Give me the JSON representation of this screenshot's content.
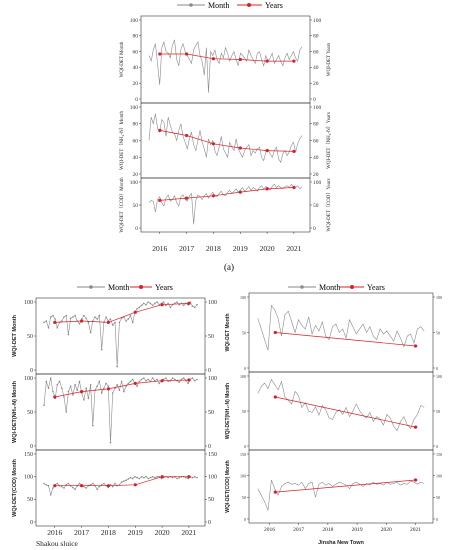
{
  "legend": {
    "month": "Month",
    "years": "Years"
  },
  "colors": {
    "month": "#8a8a8a",
    "years": "#d9202a",
    "axis": "#333333",
    "accent_point": "#3ab0c8"
  },
  "figure_label": "(a)",
  "chart_data": [
    {
      "id": "top",
      "type": "line",
      "xlabels": [
        "2016",
        "2017",
        "2018",
        "2019",
        "2020",
        "2021"
      ],
      "xlim": [
        2015.3,
        2021.6
      ],
      "panels": [
        {
          "ylabel": "WQI-DET Month",
          "ylabel_right": "WQI-DET Years",
          "ylim": [
            0,
            100
          ],
          "ticks": [
            0,
            20,
            40,
            60,
            80,
            100
          ],
          "month": [
            55,
            48,
            62,
            70,
            45,
            18,
            65,
            72,
            60,
            58,
            52,
            68,
            75,
            50,
            42,
            63,
            70,
            60,
            55,
            50,
            45,
            62,
            68,
            72,
            55,
            48,
            30,
            65,
            8,
            60,
            55,
            62,
            50,
            45,
            58,
            52,
            65,
            58,
            48,
            55,
            60,
            50,
            42,
            58,
            55,
            52,
            48,
            62,
            55,
            50,
            45,
            58,
            60,
            50,
            42,
            55,
            48,
            52,
            58,
            45,
            50,
            55,
            48,
            42,
            52,
            58,
            50,
            55,
            60,
            52,
            48,
            62,
            66
          ],
          "years_x": [
            2016,
            2017,
            2018,
            2019,
            2020,
            2021
          ],
          "years_y": [
            57,
            57,
            51,
            50,
            48,
            48
          ]
        },
        {
          "ylabel": "WQI-DET（NH₄-N）Month",
          "ylabel_right": "WQI-DET（NH₄-N）Years",
          "ylim": [
            20,
            100
          ],
          "ticks": [
            20,
            40,
            60,
            80,
            100
          ],
          "month": [
            60,
            88,
            80,
            92,
            75,
            70,
            85,
            82,
            65,
            88,
            78,
            70,
            68,
            60,
            72,
            80,
            65,
            58,
            50,
            62,
            70,
            55,
            48,
            60,
            72,
            58,
            50,
            40,
            62,
            55,
            60,
            48,
            42,
            52,
            65,
            50,
            45,
            40,
            58,
            52,
            48,
            62,
            50,
            45,
            40,
            48,
            52,
            55,
            42,
            48,
            45,
            50,
            52,
            40,
            36,
            46,
            50,
            44,
            40,
            48,
            52,
            38,
            34,
            44,
            48,
            42,
            46,
            54,
            58,
            46,
            56,
            62,
            66
          ],
          "years_x": [
            2016,
            2017,
            2018,
            2019,
            2020,
            2021
          ],
          "years_y": [
            72,
            66,
            56,
            51,
            48,
            47
          ]
        },
        {
          "ylabel": "WQI-DET（COD）Month",
          "ylabel_right": "WQI-DET（COD）Years",
          "ylim": [
            0,
            100
          ],
          "ticks": [
            0,
            50,
            100
          ],
          "month": [
            55,
            60,
            58,
            35,
            62,
            68,
            55,
            48,
            65,
            72,
            58,
            62,
            70,
            55,
            48,
            68,
            72,
            62,
            58,
            70,
            75,
            8,
            60,
            72,
            68,
            62,
            70,
            75,
            65,
            72,
            78,
            70,
            68,
            75,
            80,
            72,
            70,
            78,
            82,
            75,
            80,
            85,
            78,
            82,
            88,
            80,
            85,
            90,
            82,
            88,
            85,
            80,
            88,
            92,
            85,
            90,
            88,
            82,
            90,
            95,
            88,
            92,
            88,
            85,
            90,
            92,
            88,
            95,
            90,
            88,
            92,
            85,
            90
          ],
          "years_x": [
            2016,
            2017,
            2018,
            2019,
            2020,
            2021
          ],
          "years_y": [
            60,
            65,
            70,
            78,
            85,
            88
          ]
        }
      ]
    },
    {
      "id": "left",
      "type": "line",
      "title": "Shakou sluice",
      "xlabels": [
        "2016",
        "2017",
        "2018",
        "2019",
        "2020",
        "2021"
      ],
      "xlim": [
        2015.3,
        2021.6
      ],
      "panels": [
        {
          "ylabel": "WQI-DET Month",
          "ylim": [
            0,
            100
          ],
          "ticks": [
            0,
            50,
            100
          ],
          "month": [
            70,
            72,
            62,
            78,
            80,
            75,
            62,
            70,
            72,
            78,
            80,
            52,
            76,
            78,
            80,
            72,
            68,
            75,
            80,
            76,
            70,
            55,
            72,
            78,
            75,
            80,
            30,
            70,
            78,
            72,
            75,
            66,
            70,
            5,
            70,
            76,
            78,
            72,
            75,
            80,
            70,
            85,
            90,
            92,
            95,
            98,
            96,
            100,
            98,
            95,
            98,
            100,
            96,
            98,
            100,
            95,
            98,
            92,
            96,
            98,
            100,
            96,
            98,
            95,
            98,
            96,
            100,
            94,
            92,
            96
          ],
          "years_x": [
            2016,
            2017,
            2018,
            2019,
            2020,
            2021
          ],
          "years_y": [
            70,
            72,
            70,
            85,
            96,
            98
          ]
        },
        {
          "ylabel": "WQI-DET(NH₄-N) Month",
          "ylim": [
            0,
            100
          ],
          "ticks": [
            0,
            50,
            100
          ],
          "month": [
            60,
            95,
            85,
            100,
            80,
            70,
            90,
            95,
            85,
            72,
            50,
            80,
            88,
            75,
            90,
            82,
            95,
            78,
            68,
            85,
            70,
            90,
            30,
            82,
            88,
            95,
            78,
            85,
            92,
            88,
            5,
            78,
            85,
            90,
            82,
            95,
            80,
            88,
            92,
            95,
            98,
            92,
            88,
            95,
            98,
            100,
            96,
            98,
            95,
            100,
            96,
            98,
            92,
            96,
            98,
            100,
            95,
            96,
            100,
            98,
            96,
            94,
            98,
            100,
            96,
            92,
            98,
            100,
            96,
            98
          ],
          "years_x": [
            2016,
            2017,
            2018,
            2019,
            2020,
            2021
          ],
          "years_y": [
            72,
            80,
            84,
            92,
            96,
            97
          ]
        },
        {
          "ylabel": "WQI-DET(COD) Month",
          "ylim": [
            0,
            150
          ],
          "ticks": [
            0,
            50,
            100,
            150
          ],
          "month": [
            85,
            82,
            80,
            60,
            75,
            82,
            85,
            80,
            78,
            75,
            82,
            85,
            80,
            76,
            72,
            80,
            85,
            82,
            78,
            75,
            80,
            82,
            85,
            80,
            72,
            78,
            82,
            85,
            80,
            76,
            82,
            78,
            85,
            80,
            82,
            88,
            90,
            92,
            95,
            98,
            96,
            100,
            98,
            96,
            100,
            98,
            100,
            96,
            98,
            100,
            98,
            100,
            100,
            96,
            98,
            100,
            98,
            100,
            98,
            100,
            96,
            98,
            100,
            100,
            98,
            96,
            100,
            98,
            100,
            98
          ],
          "years_x": [
            2016,
            2017,
            2018,
            2019,
            2020,
            2021
          ],
          "years_y": [
            80,
            80,
            80,
            82,
            100,
            100
          ]
        }
      ]
    },
    {
      "id": "right",
      "type": "line",
      "title": "Jinsha New Town",
      "xlabels": [
        "2016",
        "2017",
        "2018",
        "2019",
        "2020",
        "2021"
      ],
      "xlim": [
        2015.3,
        2021.6
      ],
      "panels": [
        {
          "ylabel": "WQI-DET Month",
          "ylim": [
            0,
            100
          ],
          "ticks": [
            0,
            50,
            100
          ],
          "month": [
            70,
            55,
            40,
            25,
            88,
            82,
            70,
            45,
            75,
            80,
            65,
            50,
            68,
            60,
            55,
            72,
            48,
            60,
            52,
            65,
            45,
            40,
            58,
            62,
            50,
            55,
            42,
            68,
            58,
            48,
            55,
            62,
            50,
            58,
            45,
            40,
            55,
            48,
            52,
            45,
            38,
            52,
            42,
            30,
            45,
            48,
            35,
            55,
            58,
            52
          ],
          "years_x": [
            2016.2,
            2021.0
          ],
          "years_y": [
            50,
            31
          ]
        },
        {
          "ylabel": "WQI-DET(NH₄-N) Month",
          "ylim": [
            0,
            100
          ],
          "ticks": [
            0,
            50,
            100
          ],
          "month": [
            75,
            85,
            90,
            82,
            95,
            88,
            80,
            92,
            70,
            65,
            60,
            78,
            72,
            55,
            62,
            50,
            48,
            56,
            44,
            58,
            52,
            40,
            38,
            48,
            52,
            45,
            55,
            42,
            50,
            60,
            50,
            44,
            40,
            48,
            35,
            42,
            38,
            30,
            45,
            40,
            28,
            22,
            35,
            42,
            30,
            25,
            38,
            45,
            58,
            55
          ],
          "years_x": [
            2016.2,
            2021.0
          ],
          "years_y": [
            70,
            27
          ]
        },
        {
          "ylabel": "WQI-DET(COD) Month",
          "ylim": [
            0,
            150
          ],
          "ticks": [
            0,
            50,
            100,
            150
          ],
          "month": [
            70,
            55,
            40,
            20,
            90,
            70,
            55,
            75,
            82,
            85,
            80,
            82,
            78,
            85,
            70,
            82,
            85,
            50,
            80,
            85,
            78,
            82,
            75,
            80,
            85,
            82,
            78,
            70,
            82,
            85,
            80,
            75,
            82,
            78,
            85,
            80,
            82,
            78,
            85,
            80,
            82,
            85,
            78,
            82,
            80,
            88,
            85,
            80,
            85,
            82
          ],
          "years_x": [
            2016.2,
            2021.0
          ],
          "years_y": [
            62,
            90
          ]
        }
      ]
    }
  ]
}
